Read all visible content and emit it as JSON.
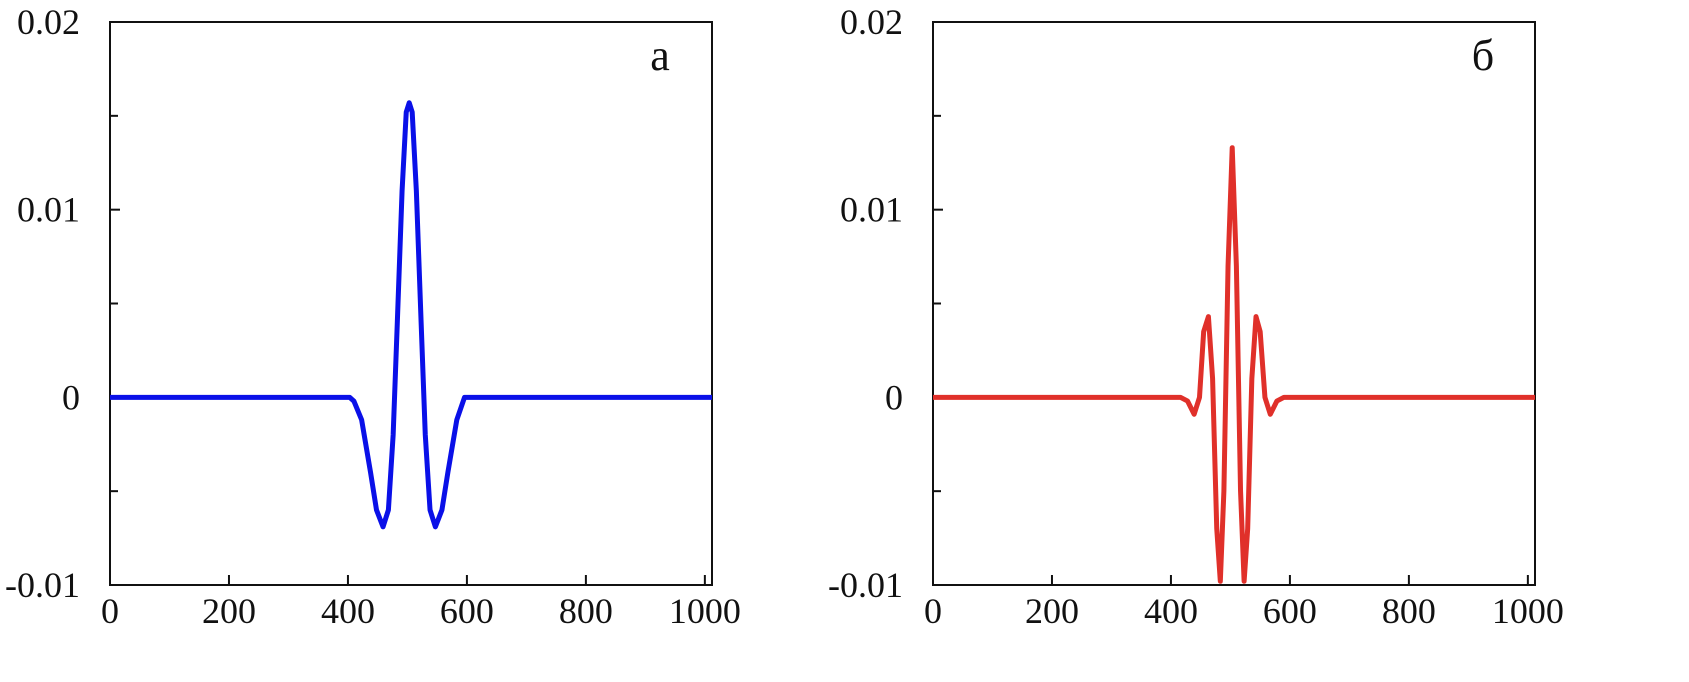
{
  "chart_data": [
    {
      "type": "line",
      "label": "а",
      "color": "#0a10e8",
      "x": [
        0,
        403,
        410,
        423,
        438,
        448,
        459,
        468,
        476,
        483,
        491,
        498,
        503,
        508,
        515,
        523,
        530,
        538,
        547,
        558,
        568,
        583,
        596,
        1012
      ],
      "values": [
        0,
        0,
        -0.0002,
        -0.0012,
        -0.004,
        -0.006,
        -0.0069,
        -0.006,
        -0.002,
        0.004,
        0.011,
        0.0152,
        0.0157,
        0.0152,
        0.011,
        0.004,
        -0.002,
        -0.006,
        -0.0069,
        -0.006,
        -0.004,
        -0.0012,
        0,
        0
      ],
      "xlim": [
        0,
        1012
      ],
      "xticks": [
        0,
        200,
        400,
        600,
        800,
        1000
      ],
      "ylim": [
        -0.01,
        0.02
      ],
      "yticks": [
        -0.01,
        0,
        0.01,
        0.02
      ],
      "yminor_ticks": [
        -0.005,
        0.005,
        0.015
      ]
    },
    {
      "type": "line",
      "label": "б",
      "color": "#e0302a",
      "x": [
        0,
        416,
        428,
        439,
        448,
        455,
        463,
        470,
        477,
        483,
        489,
        496,
        503,
        510,
        517,
        523,
        529,
        536,
        543,
        550,
        558,
        567,
        578,
        590,
        1012
      ],
      "values": [
        0,
        0,
        -0.0002,
        -0.0009,
        0,
        0.0035,
        0.0043,
        0.001,
        -0.007,
        -0.0098,
        -0.005,
        0.007,
        0.0133,
        0.007,
        -0.005,
        -0.0098,
        -0.007,
        0.001,
        0.0043,
        0.0035,
        0,
        -0.0009,
        -0.0002,
        0,
        0
      ],
      "xlim": [
        0,
        1012
      ],
      "xticks": [
        0,
        200,
        400,
        600,
        800,
        1000
      ],
      "ylim": [
        -0.01,
        0.02
      ],
      "yticks": [
        -0.01,
        0,
        0.01,
        0.02
      ],
      "yminor_ticks": [
        -0.005,
        0.005,
        0.015
      ]
    }
  ]
}
